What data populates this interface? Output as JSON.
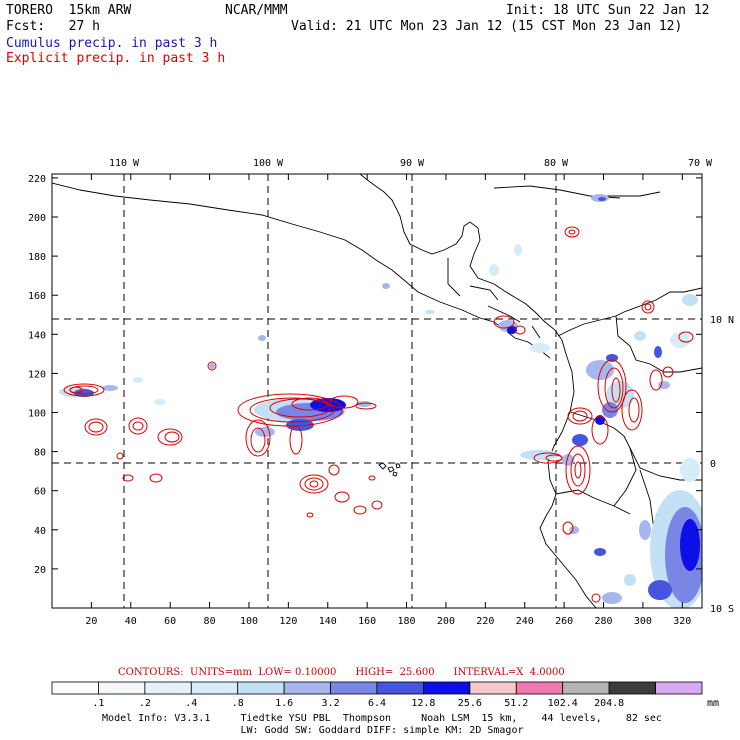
{
  "header": {
    "model": "TORERO  15km ARW",
    "center": "NCAR/MMM",
    "init": "Init: 18 UTC Sun 22 Jan 12",
    "fcst": "Fcst:   27 h",
    "valid": "Valid: 21 UTC Mon 23 Jan 12 (15 CST Mon 23 Jan 12)"
  },
  "legend": {
    "cumulus": "Cumulus precip. in past 3 h",
    "explicit": "Explicit precip. in past 3 h",
    "cumulus_color": "#1a1aa6",
    "explicit_color": "#dd0000"
  },
  "map": {
    "lon_labels": [
      "110 W",
      "100 W",
      "90 W",
      "80 W",
      "70 W"
    ],
    "lat_labels": [
      "10 N",
      "0",
      "10 S"
    ],
    "y_ticks": [
      "220",
      "200",
      "180",
      "160",
      "140",
      "120",
      "100",
      "80",
      "60",
      "40",
      "20"
    ],
    "x_ticks": [
      "20",
      "40",
      "60",
      "80",
      "100",
      "120",
      "140",
      "160",
      "180",
      "200",
      "220",
      "240",
      "260",
      "280",
      "300",
      "320"
    ]
  },
  "contours": {
    "caption": "CONTOURS:  UNITS=mm  LOW= 0.10000      HIGH=  25.600      INTERVAL=X  4.0000"
  },
  "colorbar": {
    "labels": [
      ".1",
      ".2",
      ".4",
      ".8",
      "1.6",
      "3.2",
      "6.4",
      "12.8",
      "25.6",
      "51.2",
      "102.4",
      "204.8"
    ],
    "unit": "mm",
    "colors": [
      "#ffffff",
      "#f4f8fc",
      "#e6f2fa",
      "#d6ecf6",
      "#c4e0f4",
      "#a7b6ee",
      "#7a86e6",
      "#4655e0",
      "#0d10e6",
      "#f6c8c8",
      "#f07ab0",
      "#b4b4b4",
      "#3c3c3c",
      "#d8a8f0"
    ]
  },
  "model_info": {
    "line1": "Model Info: V3.3.1     Tiedtke YSU PBL  Thompson     Noah LSM  15 km,    44 levels,    82 sec",
    "line2": "LW: Godd SW: Goddard DIFF: simple KM: 2D Smagor"
  }
}
